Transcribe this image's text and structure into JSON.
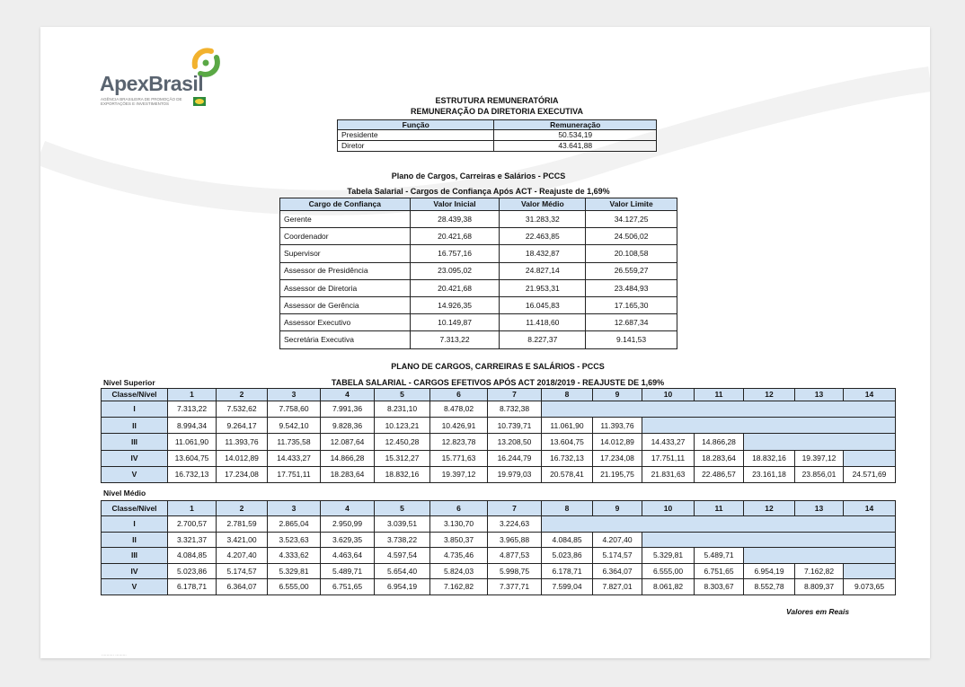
{
  "logo": {
    "name": "ApexBrasil",
    "subtitle": "AGÊNCIA BRASILEIRA DE PROMOÇÃO DE EXPORTAÇÕES E INVESTIMENTOS"
  },
  "colors": {
    "header_fill": "#cfe1f3",
    "accent_yellow": "#f2b22e",
    "accent_green": "#5aa845"
  },
  "sec1": {
    "title1": "ESTRUTURA REMUNERATÓRIA",
    "title2": "REMUNERAÇÃO DA DIRETORIA EXECUTIVA",
    "headers": [
      "Função",
      "Remuneração"
    ],
    "rows": [
      [
        "Presidente",
        "50.534,19"
      ],
      [
        "Diretor",
        "43.641,88"
      ]
    ]
  },
  "sec2": {
    "title1": "Plano de Cargos, Carreiras e Salários - PCCS",
    "title2": "Tabela Salarial - Cargos de Confiança Após ACT - Reajuste de 1,69%",
    "headers": [
      "Cargo de Confiança",
      "Valor Inicial",
      "Valor Médio",
      "Valor Limite"
    ],
    "rows": [
      [
        "Gerente",
        "28.439,38",
        "31.283,32",
        "34.127,25"
      ],
      [
        "Coordenador",
        "20.421,68",
        "22.463,85",
        "24.506,02"
      ],
      [
        "Supervisor",
        "16.757,16",
        "18.432,87",
        "20.108,58"
      ],
      [
        "Assessor de Presidência",
        "23.095,02",
        "24.827,14",
        "26.559,27"
      ],
      [
        "Assessor de Diretoria",
        "20.421,68",
        "21.953,31",
        "23.484,93"
      ],
      [
        "Assessor de Gerência",
        "14.926,35",
        "16.045,83",
        "17.165,30"
      ],
      [
        "Assessor Executivo",
        "10.149,87",
        "11.418,60",
        "12.687,34"
      ],
      [
        "Secretária Executiva",
        "7.313,22",
        "8.227,37",
        "9.141,53"
      ]
    ]
  },
  "sec3": {
    "title1": "PLANO DE CARGOS, CARREIRAS E SALÁRIOS - PCCS",
    "title2": "TABELA SALARIAL - CARGOS EFETIVOS APÓS ACT 2018/2019 - REAJUSTE DE 1,69%",
    "label": "Nível Superior",
    "headers": [
      "Classe/Nível",
      "1",
      "2",
      "3",
      "4",
      "5",
      "6",
      "7",
      "8",
      "9",
      "10",
      "11",
      "12",
      "13",
      "14"
    ],
    "rows": [
      [
        "I",
        "7.313,22",
        "7.532,62",
        "7.758,60",
        "7.991,36",
        "8.231,10",
        "8.478,02",
        "8.732,38"
      ],
      [
        "II",
        "8.994,34",
        "9.264,17",
        "9.542,10",
        "9.828,36",
        "10.123,21",
        "10.426,91",
        "10.739,71",
        "11.061,90",
        "11.393,76"
      ],
      [
        "III",
        "11.061,90",
        "11.393,76",
        "11.735,58",
        "12.087,64",
        "12.450,28",
        "12.823,78",
        "13.208,50",
        "13.604,75",
        "14.012,89",
        "14.433,27",
        "14.866,28"
      ],
      [
        "IV",
        "13.604,75",
        "14.012,89",
        "14.433,27",
        "14.866,28",
        "15.312,27",
        "15.771,63",
        "16.244,79",
        "16.732,13",
        "17.234,08",
        "17.751,11",
        "18.283,64",
        "18.832,16",
        "19.397,12"
      ],
      [
        "V",
        "16.732,13",
        "17.234,08",
        "17.751,11",
        "18.283,64",
        "18.832,16",
        "19.397,12",
        "19.979,03",
        "20.578,41",
        "21.195,75",
        "21.831,63",
        "22.486,57",
        "23.161,18",
        "23.856,01",
        "24.571,69"
      ]
    ]
  },
  "sec4": {
    "label": "Nível Médio",
    "headers": [
      "Classe/Nível",
      "1",
      "2",
      "3",
      "4",
      "5",
      "6",
      "7",
      "8",
      "9",
      "10",
      "11",
      "12",
      "13",
      "14"
    ],
    "rows": [
      [
        "I",
        "2.700,57",
        "2.781,59",
        "2.865,04",
        "2.950,99",
        "3.039,51",
        "3.130,70",
        "3.224,63"
      ],
      [
        "II",
        "3.321,37",
        "3.421,00",
        "3.523,63",
        "3.629,35",
        "3.738,22",
        "3.850,37",
        "3.965,88",
        "4.084,85",
        "4.207,40"
      ],
      [
        "III",
        "4.084,85",
        "4.207,40",
        "4.333,62",
        "4.463,64",
        "4.597,54",
        "4.735,46",
        "4.877,53",
        "5.023,86",
        "5.174,57",
        "5.329,81",
        "5.489,71"
      ],
      [
        "IV",
        "5.023,86",
        "5.174,57",
        "5.329,81",
        "5.489,71",
        "5.654,40",
        "5.824,03",
        "5.998,75",
        "6.178,71",
        "6.364,07",
        "6.555,00",
        "6.751,65",
        "6.954,19",
        "7.162,82"
      ],
      [
        "V",
        "6.178,71",
        "6.364,07",
        "6.555,00",
        "6.751,65",
        "6.954,19",
        "7.162,82",
        "7.377,71",
        "7.599,04",
        "7.827,01",
        "8.061,82",
        "8.303,67",
        "8.552,78",
        "8.809,37",
        "9.073,65"
      ]
    ],
    "note": "Valores em Reais"
  }
}
